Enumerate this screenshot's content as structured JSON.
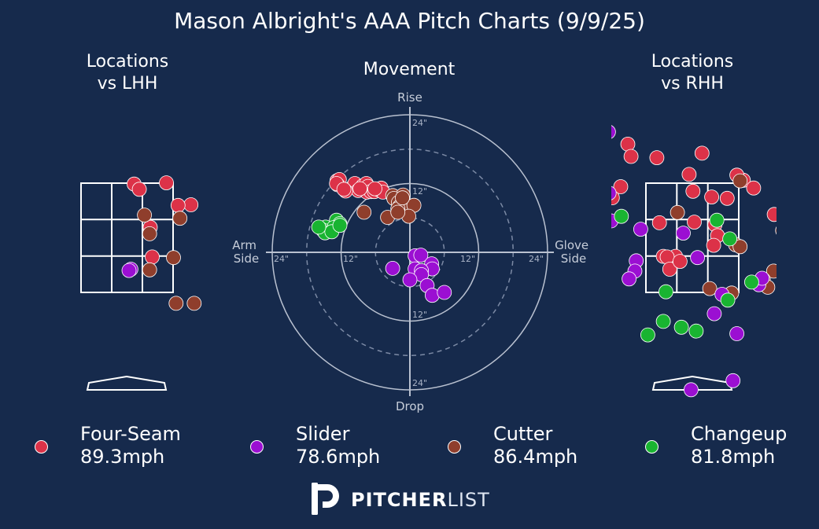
{
  "title": "Mason Albright's AAA Pitch Charts (9/9/25)",
  "chart_data": [
    {
      "type": "scatter",
      "title": "Locations\nvs LHH",
      "points": [
        {
          "pitch": "Four-Seam",
          "x": 0.61,
          "y": 3.2
        },
        {
          "pitch": "Four-Seam",
          "x": 0.11,
          "y": 3.18
        },
        {
          "pitch": "Four-Seam",
          "x": 0.19,
          "y": 3.1
        },
        {
          "pitch": "Four-Seam",
          "x": 0.99,
          "y": 2.86
        },
        {
          "pitch": "Four-Seam",
          "x": 0.79,
          "y": 2.85
        },
        {
          "pitch": "Four-Seam",
          "x": 0.36,
          "y": 2.51
        },
        {
          "pitch": "Four-Seam",
          "x": 0.39,
          "y": 2.05
        },
        {
          "pitch": "Cutter",
          "x": 0.27,
          "y": 2.7
        },
        {
          "pitch": "Cutter",
          "x": 0.35,
          "y": 2.41
        },
        {
          "pitch": "Cutter",
          "x": 0.82,
          "y": 2.65
        },
        {
          "pitch": "Cutter",
          "x": 0.72,
          "y": 2.04
        },
        {
          "pitch": "Cutter",
          "x": 0.35,
          "y": 1.85
        },
        {
          "pitch": "Cutter",
          "x": 0.76,
          "y": 1.33
        },
        {
          "pitch": "Cutter",
          "x": 1.04,
          "y": 1.33
        },
        {
          "pitch": "Slider",
          "x": 0.06,
          "y": 1.86
        },
        {
          "pitch": "Slider",
          "x": 0.03,
          "y": 1.84
        }
      ]
    },
    {
      "type": "scatter",
      "title": "Movement",
      "axis_labels": {
        "top": "Rise",
        "bottom": "Drop",
        "left": "Arm\nSide",
        "right": "Glove\nSide"
      },
      "ring_labels": [
        "12\"",
        "24\""
      ],
      "points": [
        {
          "pitch": "Four-Seam",
          "x": -12.7,
          "y": 12.5
        },
        {
          "pitch": "Four-Seam",
          "x": -12.3,
          "y": 12.7
        },
        {
          "pitch": "Four-Seam",
          "x": -10.0,
          "y": 11.4
        },
        {
          "pitch": "Four-Seam",
          "x": -9.6,
          "y": 12.0
        },
        {
          "pitch": "Four-Seam",
          "x": -9.0,
          "y": 10.8
        },
        {
          "pitch": "Four-Seam",
          "x": -8.2,
          "y": 11.6
        },
        {
          "pitch": "Four-Seam",
          "x": -7.5,
          "y": 10.5
        },
        {
          "pitch": "Four-Seam",
          "x": -7.6,
          "y": 12.0
        },
        {
          "pitch": "Four-Seam",
          "x": -7.3,
          "y": 11.5
        },
        {
          "pitch": "Four-Seam",
          "x": -6.8,
          "y": 10.6
        },
        {
          "pitch": "Four-Seam",
          "x": -6.2,
          "y": 10.6
        },
        {
          "pitch": "Four-Seam",
          "x": -5.4,
          "y": 10.9
        },
        {
          "pitch": "Four-Seam",
          "x": -5.0,
          "y": 11.2
        },
        {
          "pitch": "Four-Seam",
          "x": -4.7,
          "y": 10.5
        },
        {
          "pitch": "Four-Seam",
          "x": -11.2,
          "y": 10.7
        },
        {
          "pitch": "Four-Seam",
          "x": -12.6,
          "y": 11.8
        },
        {
          "pitch": "Four-Seam",
          "x": -12.8,
          "y": 12.0
        },
        {
          "pitch": "Four-Seam",
          "x": -8.7,
          "y": 11.1
        },
        {
          "pitch": "Four-Seam",
          "x": -6.1,
          "y": 11.1
        },
        {
          "pitch": "Four-Seam",
          "x": -11.5,
          "y": 11.0
        },
        {
          "pitch": "Cutter",
          "x": -3.0,
          "y": 9.9
        },
        {
          "pitch": "Cutter",
          "x": -1.2,
          "y": 10.0
        },
        {
          "pitch": "Cutter",
          "x": -2.8,
          "y": 9.4
        },
        {
          "pitch": "Cutter",
          "x": -2.0,
          "y": 8.7
        },
        {
          "pitch": "Cutter",
          "x": -1.8,
          "y": 8.0
        },
        {
          "pitch": "Cutter",
          "x": -0.9,
          "y": 7.5
        },
        {
          "pitch": "Cutter",
          "x": -2.1,
          "y": 7.6
        },
        {
          "pitch": "Cutter",
          "x": 0.7,
          "y": 8.2
        },
        {
          "pitch": "Cutter",
          "x": -1.3,
          "y": 9.5
        },
        {
          "pitch": "Cutter",
          "x": -0.2,
          "y": 6.3
        },
        {
          "pitch": "Cutter",
          "x": -3.9,
          "y": 6.1
        },
        {
          "pitch": "Cutter",
          "x": -2.1,
          "y": 7.0
        },
        {
          "pitch": "Cutter",
          "x": -8.0,
          "y": 7.0
        },
        {
          "pitch": "Changeup",
          "x": -12.8,
          "y": 5.6
        },
        {
          "pitch": "Changeup",
          "x": -12.2,
          "y": 5.0
        },
        {
          "pitch": "Changeup",
          "x": -14.7,
          "y": 4.4
        },
        {
          "pitch": "Changeup",
          "x": -13.3,
          "y": 4.3
        },
        {
          "pitch": "Changeup",
          "x": -15.2,
          "y": 3.9
        },
        {
          "pitch": "Changeup",
          "x": -14.8,
          "y": 3.4
        },
        {
          "pitch": "Changeup",
          "x": -13.6,
          "y": 3.6
        },
        {
          "pitch": "Changeup",
          "x": -12.2,
          "y": 4.7
        },
        {
          "pitch": "Changeup",
          "x": -15.9,
          "y": 4.4
        },
        {
          "pitch": "Slider",
          "x": 0.9,
          "y": -0.6
        },
        {
          "pitch": "Slider",
          "x": 1.9,
          "y": -0.5
        },
        {
          "pitch": "Slider",
          "x": 3.8,
          "y": -2.0
        },
        {
          "pitch": "Slider",
          "x": 3.9,
          "y": -2.9
        },
        {
          "pitch": "Slider",
          "x": 0.9,
          "y": -2.9
        },
        {
          "pitch": "Slider",
          "x": 2.0,
          "y": -3.2
        },
        {
          "pitch": "Slider",
          "x": 2.0,
          "y": -3.9
        },
        {
          "pitch": "Slider",
          "x": 0.0,
          "y": -4.8
        },
        {
          "pitch": "Slider",
          "x": 3.0,
          "y": -5.8
        },
        {
          "pitch": "Slider",
          "x": 3.9,
          "y": -7.5
        },
        {
          "pitch": "Slider",
          "x": 6.0,
          "y": -7.0
        },
        {
          "pitch": "Slider",
          "x": -3.0,
          "y": -2.8
        }
      ]
    },
    {
      "type": "scatter",
      "title": "Locations\nvs RHH",
      "points": [
        {
          "pitch": "Four-Seam",
          "x": -0.31,
          "y": 4.74
        },
        {
          "pitch": "Four-Seam",
          "x": -1.0,
          "y": 3.8
        },
        {
          "pitch": "Four-Seam",
          "x": -0.95,
          "y": 3.61
        },
        {
          "pitch": "Four-Seam",
          "x": -0.55,
          "y": 3.59
        },
        {
          "pitch": "Four-Seam",
          "x": 0.15,
          "y": 3.66
        },
        {
          "pitch": "Four-Seam",
          "x": -0.05,
          "y": 3.33
        },
        {
          "pitch": "Four-Seam",
          "x": 0.79,
          "y": 3.24
        },
        {
          "pitch": "Four-Seam",
          "x": 0.69,
          "y": 3.32
        },
        {
          "pitch": "Four-Seam",
          "x": 0.95,
          "y": 3.12
        },
        {
          "pitch": "Four-Seam",
          "x": -1.7,
          "y": 3.3
        },
        {
          "pitch": "Four-Seam",
          "x": -1.42,
          "y": 3.0
        },
        {
          "pitch": "Four-Seam",
          "x": -1.11,
          "y": 3.14
        },
        {
          "pitch": "Four-Seam",
          "x": -1.24,
          "y": 2.97
        },
        {
          "pitch": "Four-Seam",
          "x": 0.01,
          "y": 3.07
        },
        {
          "pitch": "Four-Seam",
          "x": 0.3,
          "y": 2.98
        },
        {
          "pitch": "Four-Seam",
          "x": 0.54,
          "y": 2.96
        },
        {
          "pitch": "Four-Seam",
          "x": 1.27,
          "y": 2.71
        },
        {
          "pitch": "Four-Seam",
          "x": -0.51,
          "y": 2.58
        },
        {
          "pitch": "Four-Seam",
          "x": 0.03,
          "y": 2.59
        },
        {
          "pitch": "Four-Seam",
          "x": 0.35,
          "y": 2.55
        },
        {
          "pitch": "Four-Seam",
          "x": 0.39,
          "y": 2.38
        },
        {
          "pitch": "Four-Seam",
          "x": -0.45,
          "y": 2.06
        },
        {
          "pitch": "Four-Seam",
          "x": -0.26,
          "y": 2.06
        },
        {
          "pitch": "Four-Seam",
          "x": -0.39,
          "y": 2.05
        },
        {
          "pitch": "Four-Seam",
          "x": -0.35,
          "y": 1.86
        },
        {
          "pitch": "Four-Seam",
          "x": -0.19,
          "y": 1.98
        },
        {
          "pitch": "Four-Seam",
          "x": 0.33,
          "y": 2.23
        },
        {
          "pitch": "Cutter",
          "x": 0.74,
          "y": 3.23
        },
        {
          "pitch": "Cutter",
          "x": -0.23,
          "y": 2.74
        },
        {
          "pitch": "Cutter",
          "x": 0.67,
          "y": 2.24
        },
        {
          "pitch": "Cutter",
          "x": 0.74,
          "y": 2.21
        },
        {
          "pitch": "Cutter",
          "x": 1.4,
          "y": 2.46
        },
        {
          "pitch": "Cutter",
          "x": 1.26,
          "y": 1.83
        },
        {
          "pitch": "Cutter",
          "x": 1.1,
          "y": 1.7
        },
        {
          "pitch": "Cutter",
          "x": 1.17,
          "y": 1.58
        },
        {
          "pitch": "Cutter",
          "x": 0.27,
          "y": 1.56
        },
        {
          "pitch": "Cutter",
          "x": 0.61,
          "y": 1.49
        },
        {
          "pitch": "Slider",
          "x": -1.3,
          "y": 3.99
        },
        {
          "pitch": "Slider",
          "x": -1.29,
          "y": 3.04
        },
        {
          "pitch": "Slider",
          "x": -1.26,
          "y": 2.61
        },
        {
          "pitch": "Slider",
          "x": -0.8,
          "y": 2.48
        },
        {
          "pitch": "Slider",
          "x": -0.14,
          "y": 2.42
        },
        {
          "pitch": "Slider",
          "x": -0.87,
          "y": 1.99
        },
        {
          "pitch": "Slider",
          "x": 0.08,
          "y": 2.04
        },
        {
          "pitch": "Slider",
          "x": -0.89,
          "y": 1.83
        },
        {
          "pitch": "Slider",
          "x": -0.98,
          "y": 1.71
        },
        {
          "pitch": "Slider",
          "x": 1.03,
          "y": 1.62
        },
        {
          "pitch": "Slider",
          "x": 1.08,
          "y": 1.72
        },
        {
          "pitch": "Slider",
          "x": 0.46,
          "y": 1.47
        },
        {
          "pitch": "Slider",
          "x": 1.56,
          "y": 1.44
        },
        {
          "pitch": "Slider",
          "x": 0.34,
          "y": 1.17
        },
        {
          "pitch": "Slider",
          "x": 0.69,
          "y": 0.86
        },
        {
          "pitch": "Slider",
          "x": 0.63,
          "y": 0.13
        },
        {
          "pitch": "Slider",
          "x": -0.02,
          "y": -0.01
        },
        {
          "pitch": "Slider",
          "x": -1.7,
          "y": 3.15
        },
        {
          "pitch": "Changeup",
          "x": -1.1,
          "y": 2.68
        },
        {
          "pitch": "Changeup",
          "x": 0.38,
          "y": 2.62
        },
        {
          "pitch": "Changeup",
          "x": 0.58,
          "y": 2.33
        },
        {
          "pitch": "Changeup",
          "x": 0.92,
          "y": 1.66
        },
        {
          "pitch": "Changeup",
          "x": 0.55,
          "y": 1.38
        },
        {
          "pitch": "Changeup",
          "x": -0.41,
          "y": 1.51
        },
        {
          "pitch": "Changeup",
          "x": -0.45,
          "y": 1.05
        },
        {
          "pitch": "Changeup",
          "x": -0.17,
          "y": 0.96
        },
        {
          "pitch": "Changeup",
          "x": 0.06,
          "y": 0.9
        },
        {
          "pitch": "Changeup",
          "x": -0.69,
          "y": 0.84
        }
      ]
    }
  ],
  "pitch_colors": {
    "Four-Seam": "#dc3248",
    "Slider": "#9b0fd2",
    "Cutter": "#8f3e2c",
    "Changeup": "#19b431"
  },
  "legend": [
    {
      "name": "Four-Seam",
      "speed": "89.3mph"
    },
    {
      "name": "Slider",
      "speed": "78.6mph"
    },
    {
      "name": "Cutter",
      "speed": "86.4mph"
    },
    {
      "name": "Changeup",
      "speed": "81.8mph"
    }
  ],
  "brand": {
    "bold": "PITCHER",
    "light": "LIST"
  }
}
